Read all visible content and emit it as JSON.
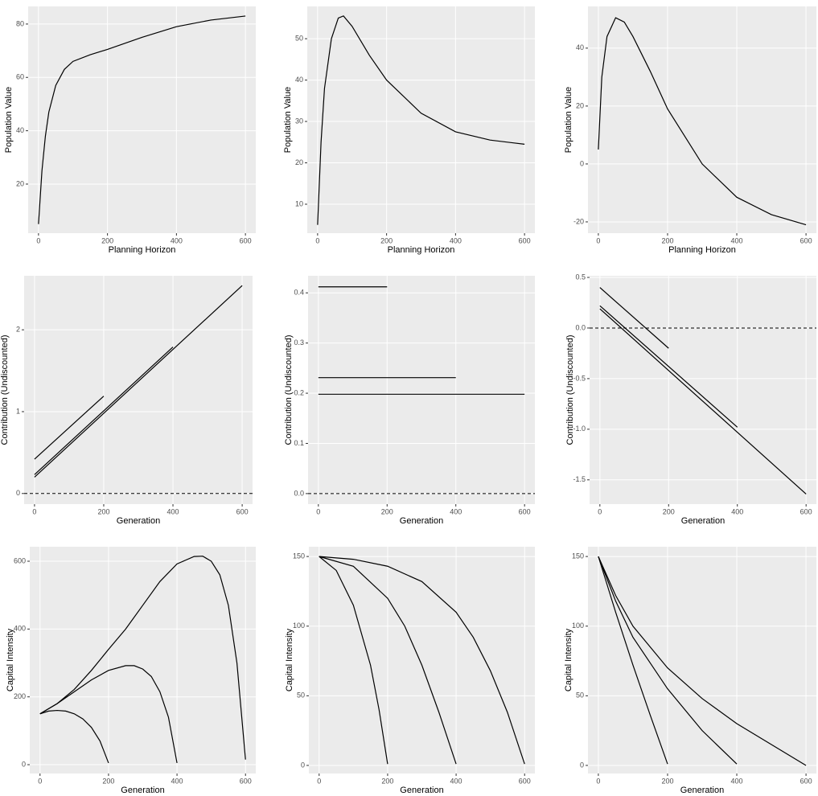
{
  "chart_data": [
    {
      "type": "line",
      "x_label": "Planning Horizon",
      "y_label": "Population Value",
      "xlim": [
        -30,
        630
      ],
      "ylim": [
        1.6,
        86.6
      ],
      "xticks": [
        0,
        200,
        400,
        600
      ],
      "yticks": [
        20,
        40,
        60,
        80
      ],
      "grid": true,
      "series": [
        {
          "color": "#000000",
          "x": [
            0,
            10,
            20,
            30,
            50,
            75,
            100,
            150,
            200,
            300,
            400,
            500,
            600
          ],
          "values": [
            5,
            25,
            38,
            47,
            57,
            63,
            66,
            68.5,
            70.5,
            75,
            79,
            81.5,
            83
          ]
        }
      ]
    },
    {
      "type": "line",
      "x_label": "Planning Horizon",
      "y_label": "Population Value",
      "xlim": [
        -30,
        630
      ],
      "ylim": [
        3,
        57.8
      ],
      "xticks": [
        0,
        200,
        400,
        600
      ],
      "yticks": [
        10,
        20,
        30,
        40,
        50
      ],
      "grid": true,
      "series": [
        {
          "color": "#000000",
          "x": [
            0,
            10,
            20,
            40,
            60,
            75,
            100,
            150,
            200,
            300,
            400,
            500,
            600
          ],
          "values": [
            5,
            25,
            38,
            50,
            55,
            55.5,
            53,
            46,
            40,
            32,
            27.5,
            25.5,
            24.5
          ]
        }
      ]
    },
    {
      "type": "line",
      "x_label": "Planning Horizon",
      "y_label": "Population Value",
      "xlim": [
        -30,
        630
      ],
      "ylim": [
        -23.9,
        54.4
      ],
      "xticks": [
        0,
        200,
        400,
        600
      ],
      "yticks": [
        -20,
        0,
        20,
        40
      ],
      "grid": true,
      "series": [
        {
          "color": "#000000",
          "x": [
            0,
            10,
            25,
            50,
            75,
            100,
            150,
            200,
            300,
            400,
            500,
            600
          ],
          "values": [
            5,
            30,
            44,
            50.5,
            49,
            44,
            32,
            19,
            0,
            -11.5,
            -17.5,
            -21
          ]
        }
      ]
    },
    {
      "type": "line",
      "x_label": "Generation",
      "y_label": "Contribution (Undiscounted)",
      "xlim": [
        -30,
        630
      ],
      "ylim": [
        -0.13,
        2.66
      ],
      "xticks": [
        0,
        200,
        400,
        600
      ],
      "yticks": [
        0,
        1,
        2
      ],
      "grid": true,
      "hline": {
        "value": 0,
        "style": "dashed"
      },
      "series": [
        {
          "color": "#000000",
          "x": [
            0,
            200
          ],
          "values": [
            0.42,
            1.19
          ]
        },
        {
          "color": "#000000",
          "x": [
            0,
            400
          ],
          "values": [
            0.23,
            1.79
          ]
        },
        {
          "color": "#000000",
          "x": [
            0,
            600
          ],
          "values": [
            0.2,
            2.54
          ]
        }
      ]
    },
    {
      "type": "line",
      "x_label": "Generation",
      "y_label": "Contribution (Undiscounted)",
      "xlim": [
        -30,
        630
      ],
      "ylim": [
        -0.021,
        0.434
      ],
      "xticks": [
        0,
        200,
        400,
        600
      ],
      "yticks": [
        {
          "value": 0,
          "label": "0.0"
        },
        0.1,
        0.2,
        0.3,
        0.4
      ],
      "grid": true,
      "hline": {
        "value": 0,
        "style": "dashed"
      },
      "series": [
        {
          "color": "#000000",
          "x": [
            0,
            200
          ],
          "values": [
            0.412,
            0.412
          ]
        },
        {
          "color": "#000000",
          "x": [
            0,
            400
          ],
          "values": [
            0.231,
            0.231
          ]
        },
        {
          "color": "#000000",
          "x": [
            0,
            600
          ],
          "values": [
            0.198,
            0.198
          ]
        }
      ]
    },
    {
      "type": "line",
      "x_label": "Generation",
      "y_label": "Contribution (Undiscounted)",
      "xlim": [
        -30,
        630
      ],
      "ylim": [
        -1.74,
        0.516
      ],
      "xticks": [
        0,
        200,
        400,
        600
      ],
      "yticks": [
        {
          "value": -1.5,
          "label": "-1.5"
        },
        {
          "value": -1,
          "label": "-1.0"
        },
        {
          "value": -0.5,
          "label": "-0.5"
        },
        {
          "value": 0,
          "label": "0.0"
        },
        0.5
      ],
      "grid": true,
      "hline": {
        "value": 0,
        "style": "dashed"
      },
      "series": [
        {
          "color": "#000000",
          "x": [
            0,
            200
          ],
          "values": [
            0.4,
            -0.2
          ]
        },
        {
          "color": "#000000",
          "x": [
            0,
            400
          ],
          "values": [
            0.22,
            -0.98
          ]
        },
        {
          "color": "#000000",
          "x": [
            0,
            600
          ],
          "values": [
            0.19,
            -1.64
          ]
        }
      ]
    },
    {
      "type": "line",
      "x_label": "Generation",
      "y_label": "Capital Intensity",
      "xlim": [
        -30,
        630
      ],
      "ylim": [
        -26,
        642.7
      ],
      "xticks": [
        0,
        200,
        400,
        600
      ],
      "yticks": [
        0,
        200,
        400,
        600
      ],
      "grid": true,
      "series": [
        {
          "color": "#000000",
          "x": [
            0,
            25,
            50,
            75,
            100,
            125,
            150,
            175,
            200
          ],
          "values": [
            150,
            158,
            160,
            158,
            150,
            135,
            110,
            70,
            5
          ]
        },
        {
          "color": "#000000",
          "x": [
            0,
            50,
            100,
            150,
            200,
            250,
            275,
            300,
            325,
            350,
            375,
            400
          ],
          "values": [
            150,
            180,
            215,
            250,
            278,
            292,
            292,
            282,
            260,
            215,
            140,
            5
          ]
        },
        {
          "color": "#000000",
          "x": [
            0,
            50,
            100,
            150,
            200,
            250,
            300,
            350,
            400,
            450,
            475,
            500,
            525,
            550,
            575,
            600
          ],
          "values": [
            150,
            180,
            222,
            278,
            340,
            400,
            470,
            540,
            592,
            614,
            615,
            600,
            560,
            470,
            300,
            15
          ]
        }
      ]
    },
    {
      "type": "line",
      "x_label": "Generation",
      "y_label": "Capital Intensity",
      "xlim": [
        -30,
        630
      ],
      "ylim": [
        -5.8,
        157
      ],
      "xticks": [
        0,
        200,
        400,
        600
      ],
      "yticks": [
        0,
        50,
        100,
        150
      ],
      "grid": true,
      "series": [
        {
          "color": "#000000",
          "x": [
            0,
            50,
            100,
            150,
            175,
            200
          ],
          "values": [
            150,
            140,
            115,
            72,
            40,
            1
          ]
        },
        {
          "color": "#000000",
          "x": [
            0,
            100,
            200,
            250,
            300,
            350,
            400
          ],
          "values": [
            150,
            143,
            120,
            100,
            72,
            38,
            1
          ]
        },
        {
          "color": "#000000",
          "x": [
            0,
            100,
            200,
            300,
            400,
            450,
            500,
            550,
            600
          ],
          "values": [
            150,
            148,
            143,
            132,
            110,
            92,
            68,
            38,
            1
          ]
        }
      ]
    },
    {
      "type": "line",
      "x_label": "Generation",
      "y_label": "Capital Intensity",
      "xlim": [
        -30,
        630
      ],
      "ylim": [
        -5.8,
        157
      ],
      "xticks": [
        0,
        200,
        400,
        600
      ],
      "yticks": [
        0,
        50,
        100,
        150
      ],
      "grid": true,
      "series": [
        {
          "color": "#000000",
          "x": [
            0,
            50,
            100,
            150,
            200
          ],
          "values": [
            150,
            110,
            72,
            36,
            1
          ]
        },
        {
          "color": "#000000",
          "x": [
            0,
            50,
            100,
            200,
            300,
            400
          ],
          "values": [
            150,
            118,
            92,
            55,
            25,
            1
          ]
        },
        {
          "color": "#000000",
          "x": [
            0,
            50,
            100,
            200,
            300,
            400,
            500,
            600
          ],
          "values": [
            150,
            122,
            100,
            70,
            48,
            30,
            15,
            0
          ]
        }
      ]
    }
  ]
}
